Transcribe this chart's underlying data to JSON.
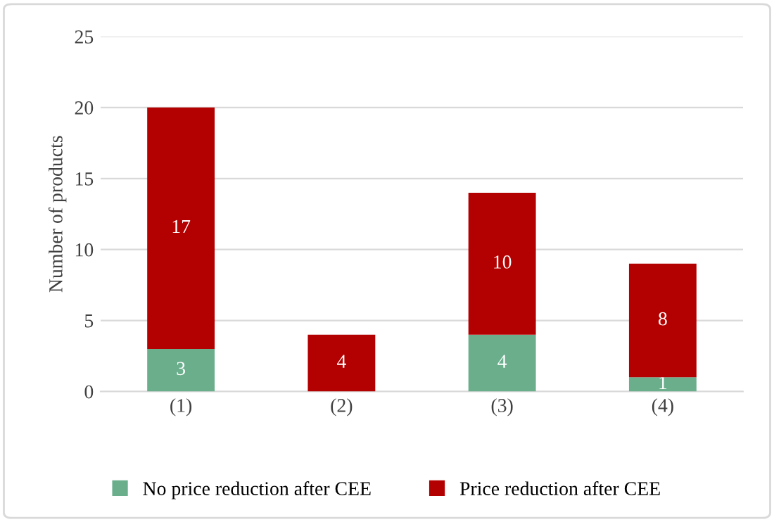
{
  "chart_data": {
    "type": "bar",
    "stacked": true,
    "ylabel": "Number of products",
    "categories": [
      "(1)",
      "(2)",
      "(3)",
      "(4)"
    ],
    "series": [
      {
        "name": "No price reduction after CEE",
        "color": "#6aae8c",
        "values": [
          3,
          0,
          4,
          1
        ],
        "value_labels": [
          "3",
          null,
          "4",
          "1"
        ]
      },
      {
        "name": "Price reduction after CEE",
        "color": "#b30000",
        "values": [
          17,
          4,
          10,
          8
        ],
        "value_labels": [
          "17",
          "4",
          "10",
          "8"
        ]
      }
    ],
    "ylim": [
      0,
      25
    ],
    "yticks": [
      0,
      5,
      10,
      15,
      20,
      25
    ],
    "grid": "y",
    "legend": "bottom"
  }
}
